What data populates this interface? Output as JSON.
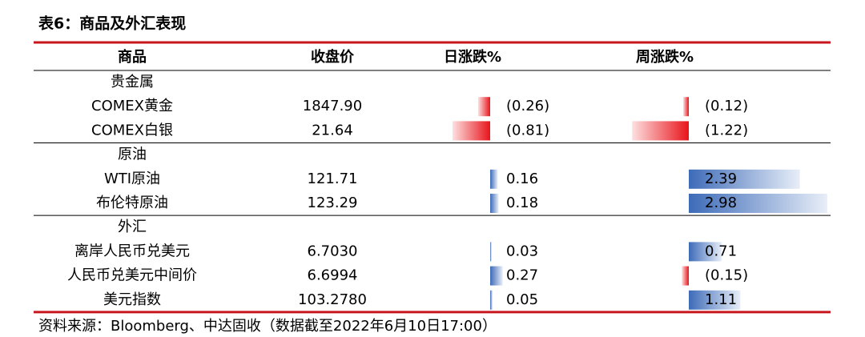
{
  "title": "表6：商品及外汇表现",
  "table": {
    "header": [
      "商品",
      "收盘价",
      "日涨跌%",
      "周涨跌%"
    ],
    "groups": [
      {
        "label": "贵金属",
        "rows": [
          {
            "name": "COMEX黄金",
            "close": "1847.90",
            "day": {
              "value": -0.26,
              "label": "(0.26)"
            },
            "week": {
              "value": -0.12,
              "label": "(0.12)"
            }
          },
          {
            "name": "COMEX白银",
            "close": "21.64",
            "day": {
              "value": -0.81,
              "label": "(0.81)"
            },
            "week": {
              "value": -1.22,
              "label": "(1.22)"
            }
          }
        ]
      },
      {
        "label": "原油",
        "rows": [
          {
            "name": "WTI原油",
            "close": "121.71",
            "day": {
              "value": 0.16,
              "label": "0.16"
            },
            "week": {
              "value": 2.39,
              "label": "2.39"
            }
          },
          {
            "name": "布伦特原油",
            "close": "123.29",
            "day": {
              "value": 0.18,
              "label": "0.18"
            },
            "week": {
              "value": 2.98,
              "label": "2.98"
            }
          }
        ]
      },
      {
        "label": "外汇",
        "rows": [
          {
            "name": "离岸人民币兑美元",
            "close": "6.7030",
            "day": {
              "value": 0.03,
              "label": "0.03"
            },
            "week": {
              "value": 0.71,
              "label": "0.71"
            }
          },
          {
            "name": "人民币兑美元中间价",
            "close": "6.6994",
            "day": {
              "value": 0.27,
              "label": "0.27"
            },
            "week": {
              "value": -0.15,
              "label": "(0.15)"
            }
          },
          {
            "name": "美元指数",
            "close": "103.2780",
            "day": {
              "value": 0.05,
              "label": "0.05"
            },
            "week": {
              "value": 1.11,
              "label": "1.11"
            }
          }
        ]
      }
    ]
  },
  "source": "资料来源：Bloomberg、中达固收（数据截至2022年6月10日17:00）"
}
